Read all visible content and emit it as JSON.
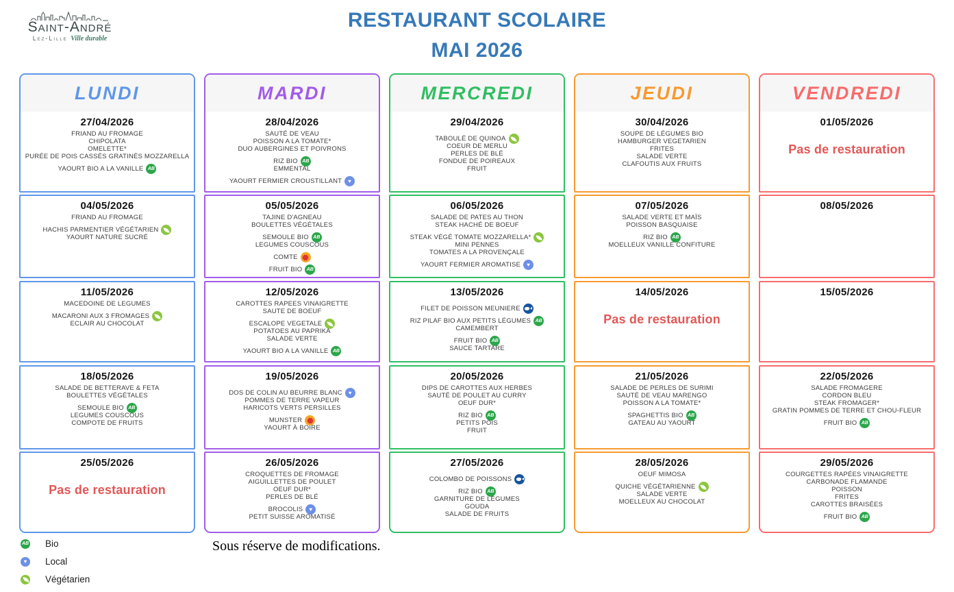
{
  "logo": {
    "name": "Saint-André",
    "subtitle": "Lez-Lille",
    "tagline": "Ville durable"
  },
  "title": {
    "line1": "RESTAURANT SCOLAIRE",
    "line2": "MAI 2026",
    "color": "#3779b7"
  },
  "note": "Sous réserve de modifications.",
  "icon_glyphs": {
    "bio": "AB",
    "local": "♥"
  },
  "icon_colors": {
    "bio": "#2ba64a",
    "local": "#6d8fe8",
    "veg": "#8cc63e",
    "aop_outer": "#f6a81c",
    "aop_inner": "#e1342c",
    "msc": "#17549e"
  },
  "legend": [
    {
      "label": "Bio",
      "icon": "bio"
    },
    {
      "label": "Local",
      "icon": "local"
    },
    {
      "label": "Végétarien",
      "icon": "veg"
    }
  ],
  "columns": [
    {
      "day": "LUNDI",
      "color": "#5f97e8",
      "cells": [
        {
          "date": "27/04/2026",
          "lines": [
            {
              "text": "FRIAND AU FROMAGE"
            },
            {
              "text": "CHIPOLATA"
            },
            {
              "text": "OMELETTE*"
            },
            {
              "text": "PURÉE DE POIS CASSÉS GRATINÉS MOZZARELLA"
            },
            {
              "text": ""
            },
            {
              "text": "YAOURT BIO A LA VANILLE",
              "icon": "bio"
            }
          ]
        },
        {
          "date": "04/05/2026",
          "lines": [
            {
              "text": "FRIAND AU FROMAGE"
            },
            {
              "text": ""
            },
            {
              "text": "HACHIS PARMENTIER VÉGÉTARIEN",
              "icon": "veg"
            },
            {
              "text": "YAOURT NATURE SUCRÉ"
            }
          ]
        },
        {
          "date": "11/05/2026",
          "lines": [
            {
              "text": "MACEDOINE DE LEGUMES"
            },
            {
              "text": ""
            },
            {
              "text": "MACARONI AUX 3 FROMAGES",
              "icon": "veg"
            },
            {
              "text": "ECLAIR AU CHOCOLAT"
            }
          ]
        },
        {
          "date": "18/05/2026",
          "lines": [
            {
              "text": "SALADE DE BETTERAVE & FETA"
            },
            {
              "text": "BOULETTES VÉGÉTALES"
            },
            {
              "text": ""
            },
            {
              "text": "SEMOULE BIO",
              "icon": "bio"
            },
            {
              "text": "LEGUMES COUSCOUS"
            },
            {
              "text": "COMPOTE DE FRUITS"
            }
          ]
        },
        {
          "date": "25/05/2026",
          "special": "Pas de restauration",
          "lines": []
        }
      ]
    },
    {
      "day": "MARDI",
      "color": "#a25ce8",
      "cells": [
        {
          "date": "28/04/2026",
          "lines": [
            {
              "text": "SAUTÉ DE VEAU"
            },
            {
              "text": "POISSON A LA TOMATE*"
            },
            {
              "text": "DUO AUBERGINES ET POIVRONS"
            },
            {
              "text": ""
            },
            {
              "text": "RIZ BIO",
              "icon": "bio"
            },
            {
              "text": "EMMENTAL"
            },
            {
              "text": ""
            },
            {
              "text": "YAOURT FERMIER CROUSTILLANT",
              "icon": "local"
            }
          ]
        },
        {
          "date": "05/05/2026",
          "lines": [
            {
              "text": "TAJINE D'AGNEAU"
            },
            {
              "text": "BOULETTES VÉGÉTALES"
            },
            {
              "text": ""
            },
            {
              "text": "SEMOULE BIO",
              "icon": "bio"
            },
            {
              "text": "LEGUMES COUSCOUS"
            },
            {
              "text": ""
            },
            {
              "text": "COMTE",
              "icon": "aop"
            },
            {
              "text": ""
            },
            {
              "text": "FRUIT BIO",
              "icon": "bio"
            }
          ]
        },
        {
          "date": "12/05/2026",
          "lines": [
            {
              "text": "CAROTTES RAPEES VINAIGRETTE"
            },
            {
              "text": "SAUTE DE BOEUF"
            },
            {
              "text": ""
            },
            {
              "text": "ESCALOPE VEGETALE",
              "icon": "veg"
            },
            {
              "text": "POTATOES AU PAPRIKA"
            },
            {
              "text": "SALADE VERTE"
            },
            {
              "text": ""
            },
            {
              "text": "YAOURT BIO A LA VANILLE",
              "icon": "bio"
            }
          ]
        },
        {
          "date": "19/05/2026",
          "lines": [
            {
              "text": ""
            },
            {
              "text": "DOS DE COLIN AU BEURRE BLANC",
              "icon": "local"
            },
            {
              "text": "POMMES DE TERRE VAPEUR"
            },
            {
              "text": "HARICOTS VERTS PERSILLES"
            },
            {
              "text": ""
            },
            {
              "text": "MUNSTER",
              "icon": "aop"
            },
            {
              "text": "YAOURT À BOIRE"
            }
          ]
        },
        {
          "date": "26/05/2026",
          "lines": [
            {
              "text": "CROQUETTES DE FROMAGE"
            },
            {
              "text": "AIGUILLETTES DE POULET"
            },
            {
              "text": "OEUF DUR*"
            },
            {
              "text": "PERLES DE BLÉ"
            },
            {
              "text": ""
            },
            {
              "text": "BROCOLIS",
              "icon": "local"
            },
            {
              "text": "PETIT SUISSE AROMATISÉ"
            }
          ]
        }
      ]
    },
    {
      "day": "MERCREDI",
      "color": "#2fbe62",
      "cells": [
        {
          "date": "29/04/2026",
          "lines": [
            {
              "text": ""
            },
            {
              "text": "TABOULÉ DE QUINOA",
              "icon": "veg"
            },
            {
              "text": "COEUR DE MERLU"
            },
            {
              "text": "PERLES DE BLÉ"
            },
            {
              "text": "FONDUE DE POIREAUX"
            },
            {
              "text": "FRUIT"
            }
          ]
        },
        {
          "date": "06/05/2026",
          "lines": [
            {
              "text": "SALADE DE PATES AU THON"
            },
            {
              "text": "STEAK HACHÉ DE BOEUF"
            },
            {
              "text": ""
            },
            {
              "text": "STEAK VÉGÉ TOMATE MOZZARELLA*",
              "icon": "veg"
            },
            {
              "text": "MINI PENNES"
            },
            {
              "text": "TOMATES A LA PROVENÇALE"
            },
            {
              "text": ""
            },
            {
              "text": "YAOURT FERMIER AROMATISE",
              "icon": "local"
            }
          ]
        },
        {
          "date": "13/05/2026",
          "lines": [
            {
              "text": ""
            },
            {
              "text": "FILET DE POISSON MEUNIERE",
              "icon": "msc"
            },
            {
              "text": ""
            },
            {
              "text": "RIZ PILAF BIO AUX PETITS LÉGUMES",
              "icon": "bio"
            },
            {
              "text": "CAMEMBERT"
            },
            {
              "text": ""
            },
            {
              "text": "FRUIT BIO",
              "icon": "bio"
            },
            {
              "text": "SAUCE TARTARE"
            }
          ]
        },
        {
          "date": "20/05/2026",
          "lines": [
            {
              "text": "DIPS DE CAROTTES AUX HERBES"
            },
            {
              "text": "SAUTÉ DE POULET AU CURRY"
            },
            {
              "text": "OEUF DUR*"
            },
            {
              "text": ""
            },
            {
              "text": "RIZ BIO",
              "icon": "bio"
            },
            {
              "text": "PETITS POIS"
            },
            {
              "text": "FRUIT"
            }
          ]
        },
        {
          "date": "27/05/2026",
          "lines": [
            {
              "text": ""
            },
            {
              "text": "COLOMBO DE POISSONS",
              "icon": "msc"
            },
            {
              "text": ""
            },
            {
              "text": "RIZ BIO",
              "icon": "bio"
            },
            {
              "text": "GARNITURE DE LÉGUMES"
            },
            {
              "text": "GOUDA"
            },
            {
              "text": "SALADE DE FRUITS"
            }
          ]
        }
      ]
    },
    {
      "day": "JEUDI",
      "color": "#f79a2f",
      "cells": [
        {
          "date": "30/04/2026",
          "lines": [
            {
              "text": "SOUPE DE LÉGUMES BIO"
            },
            {
              "text": "HAMBURGER VEGETARIEN"
            },
            {
              "text": "FRITES"
            },
            {
              "text": "SALADE VERTE"
            },
            {
              "text": "CLAFOUTIS AUX FRUITS"
            }
          ]
        },
        {
          "date": "07/05/2026",
          "lines": [
            {
              "text": "SALADE VERTE ET MAÏS"
            },
            {
              "text": "POISSON BASQUAISE"
            },
            {
              "text": ""
            },
            {
              "text": "RIZ BIO",
              "icon": "bio"
            },
            {
              "text": "MOELLEUX VANILLE CONFITURE"
            }
          ]
        },
        {
          "date": "14/05/2026",
          "special": "Pas de restauration",
          "lines": []
        },
        {
          "date": "21/05/2026",
          "lines": [
            {
              "text": "SALADE DE PERLES DE SURIMI"
            },
            {
              "text": "SAUTÉ DE VEAU MARENGO"
            },
            {
              "text": "POISSON A LA TOMATE*"
            },
            {
              "text": ""
            },
            {
              "text": "SPAGHETTIS BIO",
              "icon": "bio"
            },
            {
              "text": "GATEAU AU YAOURT"
            }
          ]
        },
        {
          "date": "28/05/2026",
          "lines": [
            {
              "text": "OEUF MIMOSA"
            },
            {
              "text": ""
            },
            {
              "text": "QUICHE VÉGÉTARIENNE",
              "icon": "veg"
            },
            {
              "text": "SALADE VERTE"
            },
            {
              "text": "MOELLEUX AU CHOCOLAT"
            }
          ]
        }
      ]
    },
    {
      "day": "VENDREDI",
      "color": "#f76c6c",
      "cells": [
        {
          "date": "01/05/2026",
          "special": "Pas de restauration",
          "lines": []
        },
        {
          "date": "08/05/2026",
          "lines": []
        },
        {
          "date": "15/05/2026",
          "lines": []
        },
        {
          "date": "22/05/2026",
          "lines": [
            {
              "text": "SALADE FROMAGERE"
            },
            {
              "text": "CORDON BLEU"
            },
            {
              "text": "STEAK FROMAGER*"
            },
            {
              "text": "GRATIN POMMES DE TERRE ET CHOU-FLEUR"
            },
            {
              "text": ""
            },
            {
              "text": "FRUIT BIO",
              "icon": "bio"
            }
          ]
        },
        {
          "date": "29/05/2026",
          "lines": [
            {
              "text": "COURGETTES RAPÉES VINAIGRETTE"
            },
            {
              "text": "CARBONADE FLAMANDE"
            },
            {
              "text": "POISSON"
            },
            {
              "text": "FRITES"
            },
            {
              "text": "CAROTTES BRAISÉES"
            },
            {
              "text": ""
            },
            {
              "text": "FRUIT BIO",
              "icon": "bio"
            }
          ]
        }
      ]
    }
  ]
}
